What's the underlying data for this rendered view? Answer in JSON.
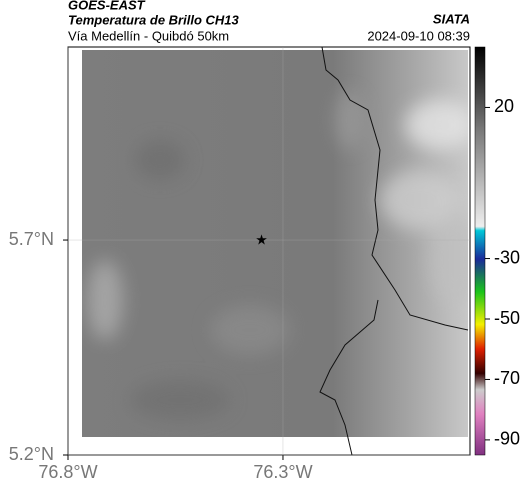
{
  "header": {
    "source": "GOES-EAST",
    "title": "Temperatura de Brillo CH13",
    "organization": "SIATA",
    "subtitle": "Vía Medellín - Quibdó 50km",
    "timestamp": "2024-09-10 08:39"
  },
  "map": {
    "xlim": [
      -76.8,
      -75.865
    ],
    "ylim": [
      5.2,
      6.149
    ],
    "xticks": [
      {
        "value": -76.8,
        "label": "76.8°W"
      },
      {
        "value": -76.3,
        "label": "76.3°W"
      }
    ],
    "yticks": [
      {
        "value": 5.2,
        "label": "5.2°N"
      },
      {
        "value": 5.7,
        "label": "5.7°N"
      }
    ],
    "grid": true,
    "marker": {
      "lon": -76.35,
      "lat": 5.7
    }
  },
  "colorbar": {
    "lim": [
      -95,
      40
    ],
    "ticks": [
      20,
      -30,
      -50,
      -70,
      -90
    ]
  }
}
